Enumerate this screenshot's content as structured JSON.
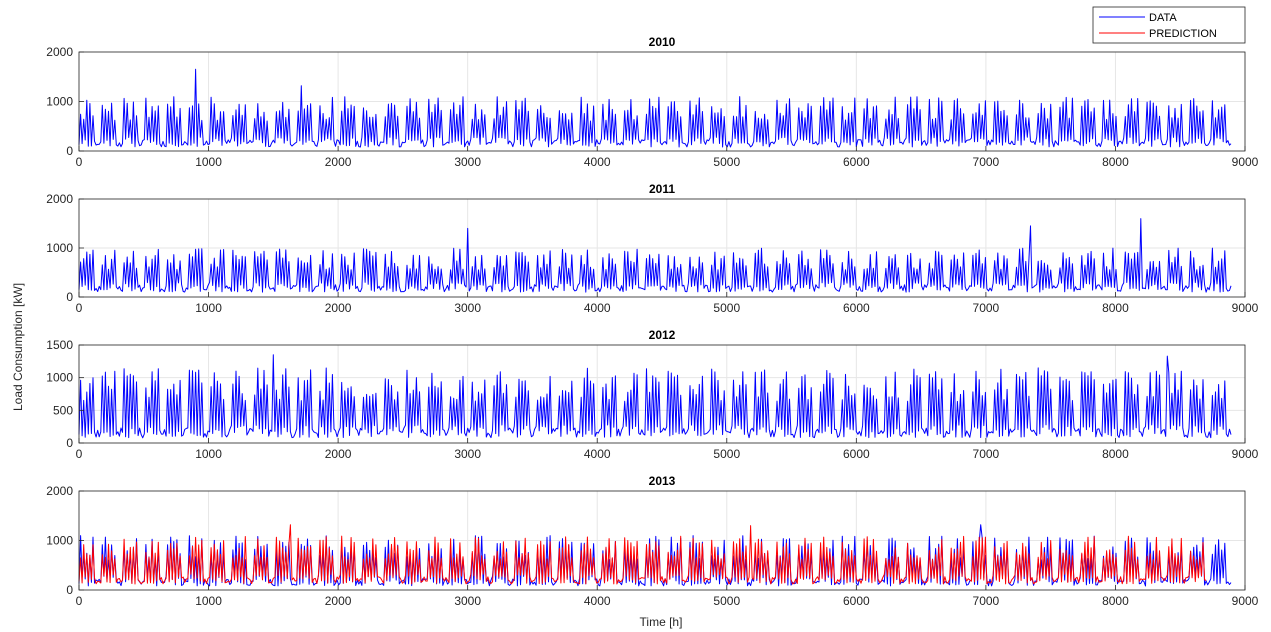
{
  "chart_data": {
    "type": "line",
    "xlabel": "Time [h]",
    "ylabel": "Load Consumption [kW]",
    "legend": {
      "position": "top-right",
      "entries": [
        {
          "label": "DATA",
          "color": "#0000ff"
        },
        {
          "label": "PREDICTION",
          "color": "#ff0000"
        }
      ]
    },
    "grid": true,
    "colors": {
      "data": "#0000ff",
      "prediction": "#ff0000",
      "axis": "#262626",
      "grid": "#e6e6e6"
    },
    "panels": [
      {
        "title": "2010",
        "xlim": [
          0,
          9000
        ],
        "ylim": [
          0,
          2000
        ],
        "xticks": [
          0,
          1000,
          2000,
          3000,
          4000,
          5000,
          6000,
          7000,
          8000,
          9000
        ],
        "yticks": [
          0,
          1000,
          2000
        ],
        "series": [
          {
            "name": "DATA",
            "peak": 1100,
            "base": 80,
            "spikes": [
              [
                900,
                1650
              ],
              [
                1720,
                1320
              ]
            ],
            "seed": 11
          }
        ]
      },
      {
        "title": "2011",
        "xlim": [
          0,
          9000
        ],
        "ylim": [
          0,
          2000
        ],
        "xticks": [
          0,
          1000,
          2000,
          3000,
          4000,
          5000,
          6000,
          7000,
          8000,
          9000
        ],
        "yticks": [
          0,
          1000,
          2000
        ],
        "series": [
          {
            "name": "DATA",
            "peak": 1000,
            "base": 100,
            "spikes": [
              [
                3000,
                1400
              ],
              [
                7350,
                1450
              ],
              [
                8200,
                1600
              ]
            ],
            "seed": 23
          }
        ]
      },
      {
        "title": "2012",
        "xlim": [
          0,
          9000
        ],
        "ylim": [
          0,
          1500
        ],
        "xticks": [
          0,
          1000,
          2000,
          3000,
          4000,
          5000,
          6000,
          7000,
          8000,
          9000
        ],
        "yticks": [
          0,
          500,
          1000,
          1500
        ],
        "series": [
          {
            "name": "DATA",
            "peak": 1150,
            "base": 80,
            "spikes": [
              [
                1500,
                1350
              ],
              [
                8400,
                1330
              ]
            ],
            "seed": 37
          }
        ]
      },
      {
        "title": "2013",
        "xlim": [
          0,
          9000
        ],
        "ylim": [
          0,
          2000
        ],
        "xticks": [
          0,
          1000,
          2000,
          3000,
          4000,
          5000,
          6000,
          7000,
          8000,
          9000
        ],
        "yticks": [
          0,
          1000,
          2000
        ],
        "series": [
          {
            "name": "DATA",
            "peak": 1100,
            "base": 80,
            "spikes": [
              [
                6960,
                1320
              ]
            ],
            "seed": 41
          },
          {
            "name": "PREDICTION",
            "peak": 1100,
            "base": 120,
            "spikes": [
              [
                1630,
                1320
              ],
              [
                5180,
                1300
              ]
            ],
            "seed": 53,
            "end": 8700
          }
        ]
      }
    ]
  }
}
